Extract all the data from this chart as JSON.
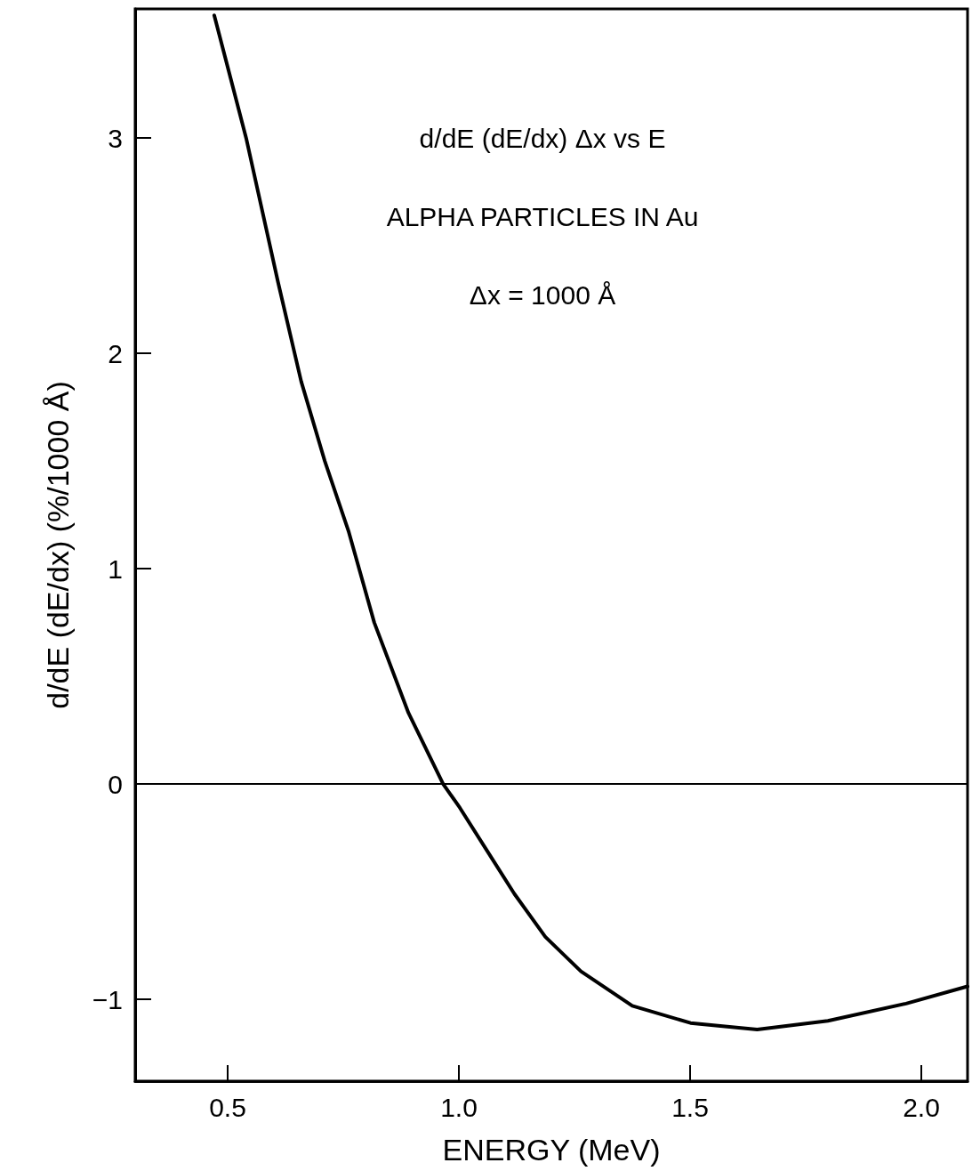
{
  "chart_data": {
    "type": "line",
    "xlabel": "ENERGY (MeV)",
    "ylabel": "d/dE (dE/dx) (%/1000 Å)",
    "annotations": [
      "d/dE (dE/dx) Δx vs E",
      "ALPHA PARTICLES IN Au",
      "Δx = 1000 Å"
    ],
    "x": [
      0.471,
      0.54,
      0.609,
      0.659,
      0.71,
      0.762,
      0.817,
      0.891,
      0.966,
      1.002,
      1.061,
      1.12,
      1.187,
      1.264,
      1.375,
      1.501,
      1.645,
      1.798,
      1.967,
      2.1
    ],
    "series": [
      {
        "color": "#000000",
        "values": [
          3.57,
          3.0,
          2.33,
          1.87,
          1.5,
          1.17,
          0.75,
          0.33,
          0,
          -0.11,
          -0.31,
          -0.51,
          -0.71,
          -0.87,
          -1.03,
          -1.11,
          -1.14,
          -1.1,
          -1.02,
          -0.94
        ]
      }
    ],
    "xlim": [
      0.3,
      2.1
    ],
    "xticks": [
      {
        "value": 0.5,
        "label": "0.5"
      },
      {
        "value": 1,
        "label": "1.0"
      },
      {
        "value": 1.5,
        "label": "1.5"
      },
      {
        "value": 2,
        "label": "2.0"
      }
    ],
    "ylim": [
      -1.38,
      3.6
    ],
    "yticks": [
      -1,
      0,
      1,
      2,
      3
    ],
    "ref_lines": [
      {
        "axis": "y",
        "value": 0,
        "color": "#000000"
      }
    ],
    "grid": false,
    "marker": "none",
    "line_style": "solid"
  }
}
